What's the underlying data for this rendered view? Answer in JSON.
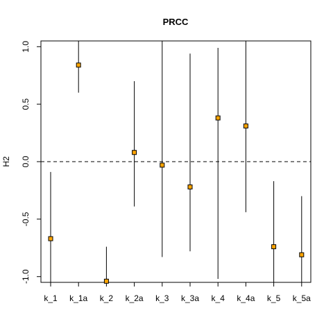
{
  "chart_data": {
    "type": "scatter",
    "title": "PRCC",
    "xlabel": "",
    "ylabel": "H2",
    "ylim": [
      -1.05,
      1.05
    ],
    "yticks": [
      "-1.0",
      "-0.5",
      "0.0",
      "0.5",
      "1.0"
    ],
    "reference_line": 0.0,
    "grid": false,
    "categories": [
      "k_1",
      "k_1a",
      "k_2",
      "k_2a",
      "k_3",
      "k_3a",
      "k_4",
      "k_4a",
      "k_5",
      "k_5a"
    ],
    "values": [
      -0.67,
      0.84,
      -1.04,
      0.08,
      -0.03,
      -0.22,
      0.38,
      0.31,
      -0.74,
      -0.81
    ],
    "intervals": [
      [
        -1.1,
        -0.09
      ],
      [
        0.6,
        1.1
      ],
      [
        -1.1,
        -0.74
      ],
      [
        -0.39,
        0.7
      ],
      [
        -0.83,
        1.1
      ],
      [
        -0.78,
        0.94
      ],
      [
        -1.02,
        0.99
      ],
      [
        -0.44,
        1.1
      ],
      [
        -1.1,
        -0.17
      ],
      [
        -1.1,
        -0.3
      ]
    ],
    "marker_color": "#FFA500"
  }
}
